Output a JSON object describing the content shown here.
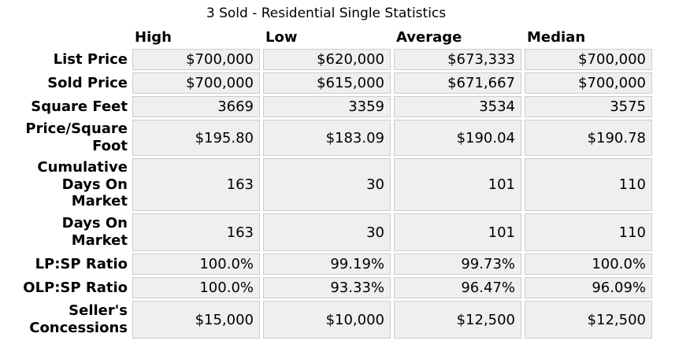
{
  "title": "3 Sold - Residential Single Statistics",
  "table": {
    "columns": [
      "High",
      "Low",
      "Average",
      "Median"
    ],
    "rows": [
      {
        "label": "List Price",
        "values": [
          "$700,000",
          "$620,000",
          "$673,333",
          "$700,000"
        ]
      },
      {
        "label": "Sold Price",
        "values": [
          "$700,000",
          "$615,000",
          "$671,667",
          "$700,000"
        ]
      },
      {
        "label": "Square Feet",
        "values": [
          "3669",
          "3359",
          "3534",
          "3575"
        ]
      },
      {
        "label": "Price/Square Foot",
        "values": [
          "$195.80",
          "$183.09",
          "$190.04",
          "$190.78"
        ]
      },
      {
        "label": "Cumulative Days On Market",
        "values": [
          "163",
          "30",
          "101",
          "110"
        ]
      },
      {
        "label": "Days On Market",
        "values": [
          "163",
          "30",
          "101",
          "110"
        ]
      },
      {
        "label": "LP:SP Ratio",
        "values": [
          "100.0%",
          "99.19%",
          "99.73%",
          "100.0%"
        ]
      },
      {
        "label": "OLP:SP Ratio",
        "values": [
          "100.0%",
          "93.33%",
          "96.47%",
          "96.09%"
        ]
      },
      {
        "label": "Seller's Concessions",
        "values": [
          "$15,000",
          "$10,000",
          "$12,500",
          "$12,500"
        ]
      }
    ]
  },
  "colors": {
    "page_bg": "#ffffff",
    "cell_bg": "#efefef",
    "cell_border": "#cccccc",
    "text": "#000000"
  }
}
